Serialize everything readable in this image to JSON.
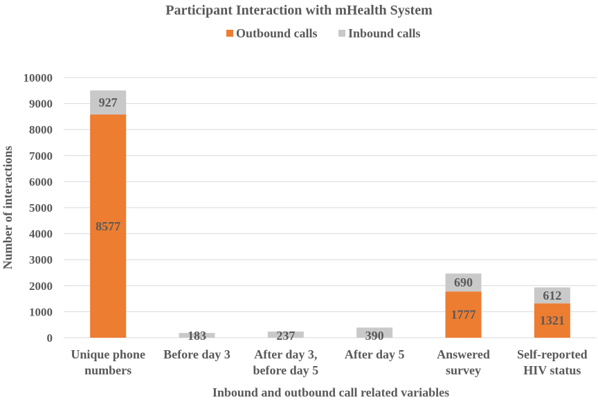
{
  "chart_data": {
    "type": "bar",
    "stacked": true,
    "title": "Participant Interaction with mHealth System",
    "xlabel": "Inbound and outbound call related variables",
    "ylabel": "Number of interactions",
    "ylim": [
      0,
      10000
    ],
    "yticks": [
      "0",
      "1000",
      "2000",
      "3000",
      "4000",
      "5000",
      "6000",
      "7000",
      "8000",
      "9000",
      "10000"
    ],
    "grid": true,
    "legend_position": "top",
    "categories": [
      [
        "Unique phone",
        "numbers"
      ],
      [
        "Before day 3"
      ],
      [
        "After day 3,",
        "before day 5"
      ],
      [
        "After day 5"
      ],
      [
        "Answered",
        "survey"
      ],
      [
        "Self-reported",
        "HIV status"
      ]
    ],
    "series": [
      {
        "name": "Outbound calls",
        "color": "#ed7d31",
        "values": [
          8577,
          0,
          0,
          0,
          1777,
          1321
        ],
        "labels": [
          "8577",
          "",
          "",
          "",
          "1777",
          "1321"
        ]
      },
      {
        "name": "Inbound calls",
        "color": "#c9c9c9",
        "values": [
          927,
          183,
          237,
          390,
          690,
          612
        ],
        "labels": [
          "927",
          "183",
          "237",
          "390",
          "690",
          "612"
        ]
      }
    ]
  }
}
